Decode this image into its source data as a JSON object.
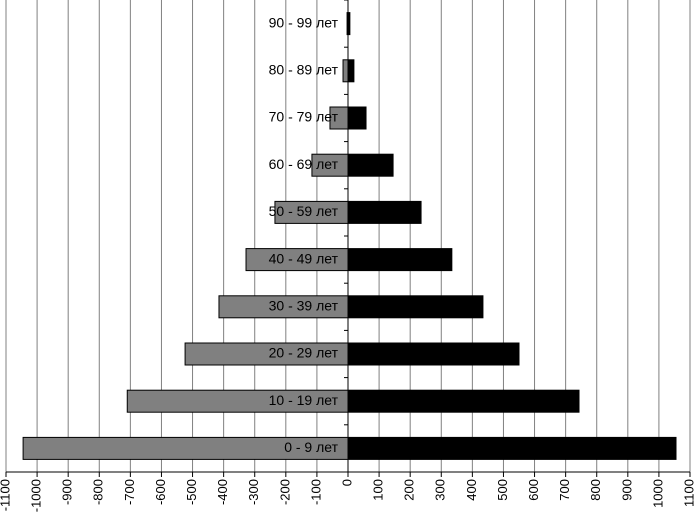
{
  "chart_data": {
    "type": "pyramid",
    "categories": [
      "0 - 9 лет",
      "10 - 19 лет",
      "20 - 29 лет",
      "30 - 39 лет",
      "40 - 49 лет",
      "50 - 59 лет",
      "60 - 69 лет",
      "70 - 79 лет",
      "80 - 89 лет",
      "90 - 99 лет"
    ],
    "series": [
      {
        "color": "#808080",
        "values": [
          -1045,
          -710,
          -524,
          -415,
          -328,
          -235,
          -116,
          -58,
          -16,
          -3
        ]
      },
      {
        "color": "#000000",
        "values": [
          1055,
          743,
          550,
          434,
          334,
          235,
          145,
          58,
          19,
          6
        ]
      }
    ],
    "xlim": [
      -1100,
      1100
    ],
    "xticks": [
      -1100,
      -1000,
      -900,
      -800,
      -700,
      -600,
      -500,
      -400,
      -300,
      -200,
      -100,
      0,
      100,
      200,
      300,
      400,
      500,
      600,
      700,
      800,
      900,
      1000,
      1100
    ],
    "grid": true
  }
}
